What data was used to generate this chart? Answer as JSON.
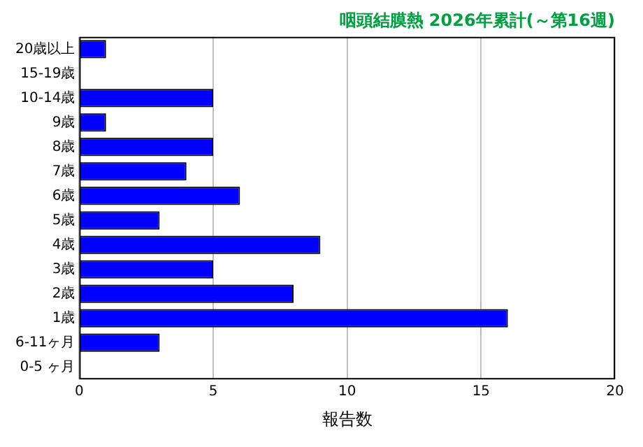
{
  "chart_data": {
    "type": "bar",
    "orientation": "horizontal",
    "title": "咽頭結膜熱 2026年累計(～第16週)",
    "xlabel": "報告数",
    "categories": [
      "20歳以上",
      "15-19歳",
      "10-14歳",
      "9歳",
      "8歳",
      "7歳",
      "6歳",
      "5歳",
      "4歳",
      "3歳",
      "2歳",
      "1歳",
      "6-11ヶ月",
      "0-5 ヶ月"
    ],
    "values": [
      1,
      0,
      5,
      1,
      5,
      4,
      6,
      3,
      9,
      5,
      8,
      16,
      3,
      0
    ],
    "color": "#0000ff",
    "xlim": [
      0,
      20
    ],
    "xticks": [
      0,
      5,
      10,
      15,
      20
    ],
    "grid": "x"
  }
}
